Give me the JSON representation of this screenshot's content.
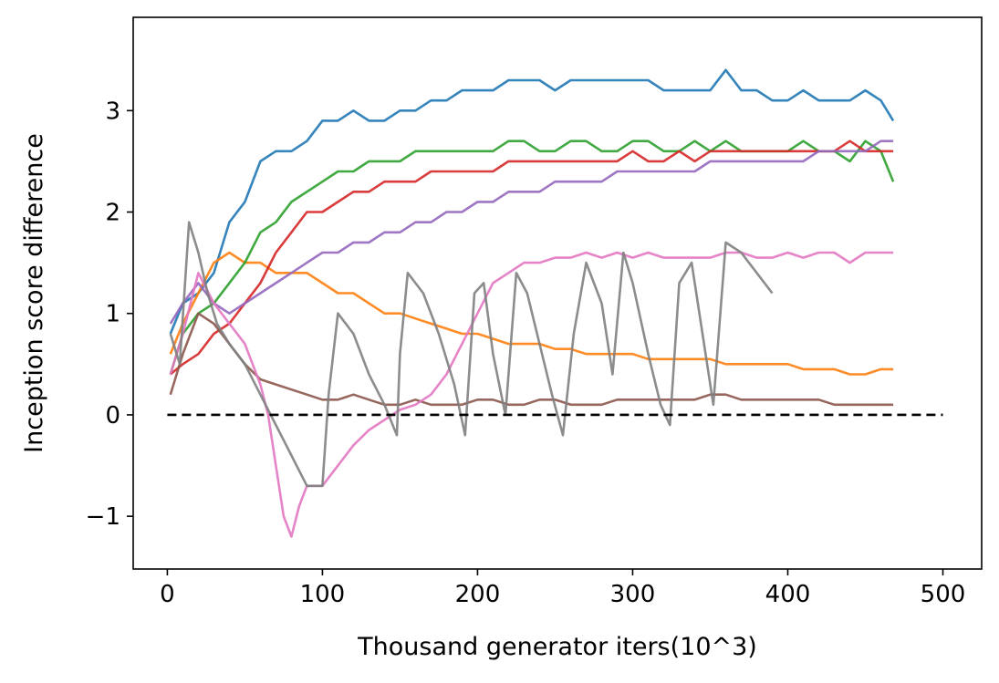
{
  "chart_data": {
    "type": "line",
    "title": "",
    "xlabel": "Thousand generator iters(10^3)",
    "ylabel": "Inception score difference",
    "xlim": [
      -22,
      525
    ],
    "ylim": [
      -1.52,
      3.92
    ],
    "xticks": [
      0,
      100,
      200,
      300,
      400,
      500
    ],
    "xtick_labels": [
      "0",
      "100",
      "200",
      "300",
      "400",
      "500"
    ],
    "yticks": [
      -1,
      0,
      1,
      2,
      3
    ],
    "ytick_labels": [
      "−1",
      "0",
      "1",
      "2",
      "3"
    ],
    "grid": false,
    "legend": "none",
    "reference_line": {
      "y": 0,
      "x": [
        0,
        500
      ],
      "color": "#000000",
      "style": "dashed"
    },
    "series": [
      {
        "color": "#1f77b4",
        "x": [
          2,
          10,
          20,
          30,
          40,
          50,
          60,
          70,
          80,
          90,
          100,
          110,
          120,
          130,
          140,
          150,
          160,
          170,
          180,
          190,
          200,
          210,
          220,
          230,
          240,
          250,
          260,
          270,
          280,
          290,
          300,
          310,
          320,
          330,
          340,
          350,
          360,
          370,
          380,
          390,
          400,
          410,
          420,
          430,
          440,
          450,
          460,
          468
        ],
        "y": [
          0.8,
          1.1,
          1.2,
          1.4,
          1.9,
          2.1,
          2.5,
          2.6,
          2.6,
          2.7,
          2.9,
          2.9,
          3.0,
          2.9,
          2.9,
          3.0,
          3.0,
          3.1,
          3.1,
          3.2,
          3.2,
          3.2,
          3.3,
          3.3,
          3.3,
          3.2,
          3.3,
          3.3,
          3.3,
          3.3,
          3.3,
          3.3,
          3.2,
          3.2,
          3.2,
          3.2,
          3.4,
          3.2,
          3.2,
          3.1,
          3.1,
          3.2,
          3.1,
          3.1,
          3.1,
          3.2,
          3.1,
          2.9
        ]
      },
      {
        "color": "#ff7f0e",
        "x": [
          2,
          10,
          20,
          30,
          40,
          50,
          60,
          70,
          80,
          90,
          100,
          110,
          120,
          130,
          140,
          150,
          160,
          170,
          180,
          190,
          200,
          210,
          220,
          230,
          240,
          250,
          260,
          270,
          280,
          290,
          300,
          310,
          320,
          330,
          340,
          350,
          360,
          370,
          380,
          390,
          400,
          410,
          420,
          430,
          440,
          450,
          460,
          468
        ],
        "y": [
          0.6,
          0.9,
          1.2,
          1.5,
          1.6,
          1.5,
          1.5,
          1.4,
          1.4,
          1.4,
          1.3,
          1.2,
          1.2,
          1.1,
          1.0,
          1.0,
          0.95,
          0.9,
          0.85,
          0.8,
          0.8,
          0.75,
          0.7,
          0.7,
          0.7,
          0.65,
          0.65,
          0.6,
          0.6,
          0.6,
          0.6,
          0.55,
          0.55,
          0.55,
          0.55,
          0.55,
          0.5,
          0.5,
          0.5,
          0.5,
          0.5,
          0.45,
          0.45,
          0.45,
          0.4,
          0.4,
          0.45,
          0.45
        ]
      },
      {
        "color": "#2ca02c",
        "x": [
          2,
          10,
          20,
          30,
          40,
          50,
          60,
          70,
          80,
          90,
          100,
          110,
          120,
          130,
          140,
          150,
          160,
          170,
          180,
          190,
          200,
          210,
          220,
          230,
          240,
          250,
          260,
          270,
          280,
          290,
          300,
          310,
          320,
          330,
          340,
          350,
          360,
          370,
          380,
          390,
          400,
          410,
          420,
          430,
          440,
          450,
          460,
          468
        ],
        "y": [
          0.4,
          0.8,
          1.0,
          1.1,
          1.3,
          1.5,
          1.8,
          1.9,
          2.1,
          2.2,
          2.3,
          2.4,
          2.4,
          2.5,
          2.5,
          2.5,
          2.6,
          2.6,
          2.6,
          2.6,
          2.6,
          2.6,
          2.7,
          2.7,
          2.6,
          2.6,
          2.7,
          2.7,
          2.6,
          2.6,
          2.7,
          2.7,
          2.6,
          2.6,
          2.7,
          2.6,
          2.7,
          2.6,
          2.6,
          2.6,
          2.6,
          2.7,
          2.6,
          2.6,
          2.5,
          2.7,
          2.6,
          2.3
        ]
      },
      {
        "color": "#d62728",
        "x": [
          2,
          10,
          20,
          30,
          40,
          50,
          60,
          70,
          80,
          90,
          100,
          110,
          120,
          130,
          140,
          150,
          160,
          170,
          180,
          190,
          200,
          210,
          220,
          230,
          240,
          250,
          260,
          270,
          280,
          290,
          300,
          310,
          320,
          330,
          340,
          350,
          360,
          370,
          380,
          390,
          400,
          410,
          420,
          430,
          440,
          450,
          460,
          468
        ],
        "y": [
          0.4,
          0.5,
          0.6,
          0.8,
          0.9,
          1.1,
          1.3,
          1.6,
          1.8,
          2.0,
          2.0,
          2.1,
          2.2,
          2.2,
          2.3,
          2.3,
          2.3,
          2.4,
          2.4,
          2.4,
          2.4,
          2.4,
          2.5,
          2.5,
          2.5,
          2.5,
          2.5,
          2.5,
          2.5,
          2.5,
          2.6,
          2.5,
          2.5,
          2.6,
          2.5,
          2.6,
          2.6,
          2.6,
          2.6,
          2.6,
          2.6,
          2.6,
          2.6,
          2.6,
          2.7,
          2.6,
          2.6,
          2.6
        ]
      },
      {
        "color": "#9467bd",
        "x": [
          2,
          10,
          20,
          30,
          40,
          50,
          60,
          70,
          80,
          90,
          100,
          110,
          120,
          130,
          140,
          150,
          160,
          170,
          180,
          190,
          200,
          210,
          220,
          230,
          240,
          250,
          260,
          270,
          280,
          290,
          300,
          310,
          320,
          330,
          340,
          350,
          360,
          370,
          380,
          390,
          400,
          410,
          420,
          430,
          440,
          450,
          460,
          468
        ],
        "y": [
          0.9,
          1.1,
          1.3,
          1.1,
          1.0,
          1.1,
          1.2,
          1.3,
          1.4,
          1.5,
          1.6,
          1.6,
          1.7,
          1.7,
          1.8,
          1.8,
          1.9,
          1.9,
          2.0,
          2.0,
          2.1,
          2.1,
          2.2,
          2.2,
          2.2,
          2.3,
          2.3,
          2.3,
          2.3,
          2.4,
          2.4,
          2.4,
          2.4,
          2.4,
          2.4,
          2.5,
          2.5,
          2.5,
          2.5,
          2.5,
          2.5,
          2.5,
          2.6,
          2.6,
          2.6,
          2.6,
          2.7,
          2.7
        ]
      },
      {
        "color": "#8c564b",
        "x": [
          2,
          10,
          20,
          30,
          40,
          50,
          60,
          70,
          80,
          90,
          100,
          110,
          120,
          130,
          140,
          150,
          160,
          170,
          180,
          190,
          200,
          210,
          220,
          230,
          240,
          250,
          260,
          270,
          280,
          290,
          300,
          310,
          320,
          330,
          340,
          350,
          360,
          370,
          380,
          390,
          400,
          410,
          420,
          430,
          440,
          450,
          460,
          468
        ],
        "y": [
          0.2,
          0.6,
          1.0,
          0.9,
          0.7,
          0.5,
          0.35,
          0.3,
          0.25,
          0.2,
          0.15,
          0.15,
          0.2,
          0.15,
          0.1,
          0.1,
          0.15,
          0.1,
          0.1,
          0.1,
          0.15,
          0.15,
          0.1,
          0.1,
          0.15,
          0.15,
          0.1,
          0.1,
          0.1,
          0.15,
          0.15,
          0.15,
          0.15,
          0.15,
          0.15,
          0.2,
          0.2,
          0.15,
          0.15,
          0.15,
          0.15,
          0.15,
          0.15,
          0.1,
          0.1,
          0.1,
          0.1,
          0.1
        ]
      },
      {
        "color": "#e377c2",
        "x": [
          2,
          10,
          20,
          30,
          40,
          50,
          60,
          65,
          70,
          75,
          80,
          85,
          90,
          100,
          110,
          120,
          130,
          140,
          150,
          160,
          170,
          180,
          190,
          200,
          210,
          220,
          230,
          240,
          250,
          260,
          270,
          280,
          290,
          300,
          310,
          320,
          330,
          340,
          350,
          360,
          370,
          380,
          390,
          400,
          410,
          420,
          430,
          440,
          450,
          460,
          468
        ],
        "y": [
          0.4,
          0.8,
          1.4,
          1.1,
          0.9,
          0.7,
          0.3,
          0.0,
          -0.5,
          -1.0,
          -1.2,
          -0.9,
          -0.7,
          -0.7,
          -0.5,
          -0.3,
          -0.15,
          -0.05,
          0.05,
          0.1,
          0.2,
          0.4,
          0.7,
          1.0,
          1.3,
          1.4,
          1.5,
          1.5,
          1.55,
          1.55,
          1.6,
          1.55,
          1.6,
          1.55,
          1.6,
          1.55,
          1.55,
          1.55,
          1.55,
          1.6,
          1.6,
          1.55,
          1.55,
          1.6,
          1.55,
          1.6,
          1.6,
          1.5,
          1.6,
          1.6,
          1.6
        ]
      },
      {
        "color": "#7f7f7f",
        "x": [
          2,
          8,
          14,
          20,
          26,
          32,
          40,
          50,
          60,
          70,
          80,
          90,
          100,
          104,
          110,
          120,
          130,
          140,
          148,
          150,
          155,
          165,
          175,
          185,
          192,
          198,
          204,
          210,
          218,
          225,
          232,
          240,
          248,
          255,
          262,
          270,
          280,
          287,
          294,
          300,
          310,
          318,
          324,
          330,
          338,
          345,
          352,
          360,
          370,
          380,
          390
        ],
        "y": [
          0.8,
          0.5,
          1.9,
          1.6,
          1.2,
          0.9,
          0.7,
          0.5,
          0.2,
          -0.1,
          -0.4,
          -0.7,
          -0.7,
          0.2,
          1.0,
          0.8,
          0.4,
          0.1,
          -0.2,
          0.6,
          1.4,
          1.2,
          0.8,
          0.3,
          -0.2,
          1.2,
          1.3,
          0.6,
          0.0,
          1.4,
          1.2,
          0.7,
          0.2,
          -0.2,
          0.8,
          1.5,
          1.1,
          0.4,
          1.6,
          1.3,
          0.6,
          0.1,
          -0.1,
          1.3,
          1.5,
          0.8,
          0.1,
          1.7,
          1.6,
          1.4,
          1.2
        ]
      }
    ]
  }
}
